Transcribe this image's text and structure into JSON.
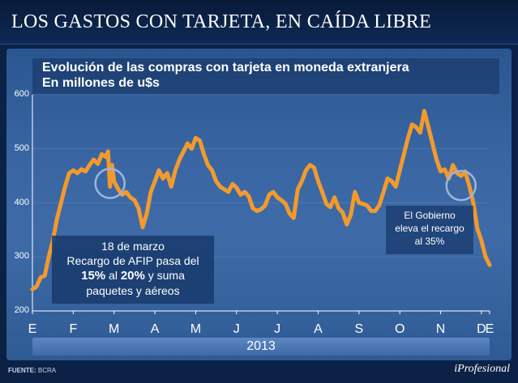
{
  "header": {
    "title": "LOS GASTOS CON TARJETA, EN CAÍDA LIBRE"
  },
  "annotations": {
    "left": {
      "line1": "18 de marzo",
      "line2": "Recargo de AFIP pasa del",
      "pct1": "15%",
      "mid": "al",
      "pct2": "20%",
      "line3_tail": "y suma",
      "line4": "paquetes y aéreos"
    },
    "right": {
      "line1": "El Gobierno",
      "line2": "eleva el recargo",
      "line3": "al 35%"
    }
  },
  "footer": {
    "source_label": "FUENTE:",
    "source_value": "BCRA",
    "brand": "iProfesional"
  },
  "colors": {
    "line": "#f39a2d",
    "circle": "#9db4df",
    "background": "#0b2146"
  },
  "chart_data": {
    "type": "line",
    "title": "Evolución de las compras con tarjeta en moneda extranjera",
    "subtitle": "En millones de u$s",
    "xlabel": "2013",
    "ylabel": "",
    "ylim": [
      200,
      600
    ],
    "yticks": [
      200,
      300,
      400,
      500,
      600
    ],
    "xlim": [
      0,
      11.2
    ],
    "x_tick_labels": [
      "E",
      "F",
      "M",
      "A",
      "M",
      "J",
      "J",
      "A",
      "S",
      "O",
      "N",
      "D",
      "E"
    ],
    "x_tick_positions": [
      0,
      1,
      2,
      3,
      4,
      5,
      6,
      7,
      8,
      9,
      10,
      11,
      11.2
    ],
    "series": [
      {
        "name": "Compras con tarjeta en moneda extranjera",
        "x": [
          0,
          0.1,
          0.2,
          0.3,
          0.4,
          0.5,
          0.6,
          0.7,
          0.8,
          0.9,
          1.0,
          1.1,
          1.2,
          1.3,
          1.4,
          1.5,
          1.6,
          1.7,
          1.8,
          1.85,
          1.9,
          1.95,
          2.0,
          2.1,
          2.2,
          2.3,
          2.4,
          2.5,
          2.6,
          2.7,
          2.8,
          2.9,
          3.0,
          3.1,
          3.2,
          3.3,
          3.4,
          3.5,
          3.6,
          3.7,
          3.8,
          3.9,
          4.0,
          4.1,
          4.2,
          4.3,
          4.4,
          4.5,
          4.6,
          4.7,
          4.8,
          4.9,
          5.0,
          5.1,
          5.2,
          5.3,
          5.4,
          5.5,
          5.6,
          5.7,
          5.8,
          5.9,
          6.0,
          6.1,
          6.2,
          6.3,
          6.4,
          6.5,
          6.6,
          6.7,
          6.8,
          6.9,
          7.0,
          7.1,
          7.2,
          7.3,
          7.4,
          7.5,
          7.6,
          7.7,
          7.8,
          7.9,
          8.0,
          8.1,
          8.2,
          8.3,
          8.4,
          8.5,
          8.6,
          8.7,
          8.8,
          8.9,
          9.0,
          9.1,
          9.2,
          9.3,
          9.4,
          9.5,
          9.6,
          9.7,
          9.8,
          9.9,
          10.0,
          10.1,
          10.2,
          10.3,
          10.4,
          10.5,
          10.6,
          10.7,
          10.8,
          10.9,
          11.0,
          11.1,
          11.2
        ],
        "values": [
          240,
          245,
          262,
          265,
          300,
          330,
          370,
          400,
          430,
          455,
          460,
          455,
          462,
          458,
          470,
          480,
          472,
          490,
          485,
          495,
          430,
          470,
          440,
          425,
          415,
          420,
          410,
          405,
          390,
          355,
          380,
          420,
          440,
          460,
          445,
          455,
          430,
          460,
          480,
          495,
          510,
          500,
          520,
          515,
          490,
          470,
          460,
          440,
          430,
          425,
          420,
          435,
          428,
          415,
          420,
          412,
          390,
          385,
          388,
          395,
          415,
          420,
          410,
          405,
          398,
          380,
          372,
          425,
          440,
          460,
          470,
          465,
          440,
          420,
          398,
          392,
          410,
          390,
          382,
          360,
          378,
          420,
          400,
          398,
          395,
          385,
          385,
          396,
          420,
          445,
          440,
          430,
          460,
          490,
          520,
          545,
          540,
          530,
          570,
          540,
          510,
          480,
          458,
          462,
          445,
          470,
          455,
          450,
          458,
          432,
          400,
          352,
          330,
          300,
          285
        ]
      }
    ]
  }
}
